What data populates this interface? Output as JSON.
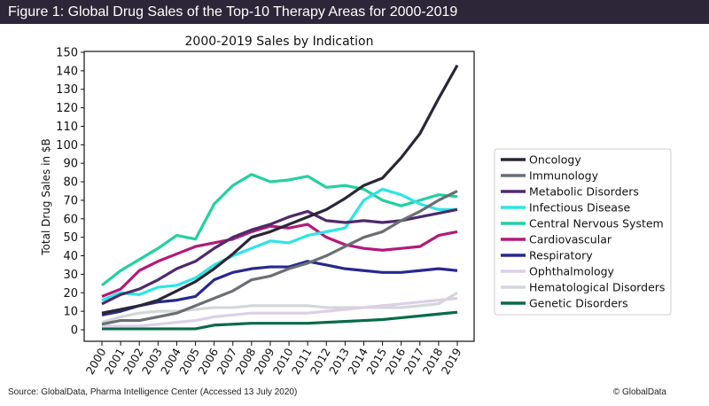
{
  "header": {
    "title": "Figure 1: Global Drug Sales of the Top-10 Therapy Areas for 2000-2019"
  },
  "footer": {
    "source": "Source: GlobalData, Pharma Intelligence Center (Accessed 13 July 2020)",
    "copyright": "© GlobalData"
  },
  "chart_data": {
    "type": "line",
    "title": "2000-2019 Sales by Indication",
    "xlabel": "",
    "ylabel": "Total Drug Sales in $B",
    "ylim": [
      0,
      150
    ],
    "yticks": [
      0,
      10,
      20,
      30,
      40,
      50,
      60,
      70,
      80,
      90,
      100,
      110,
      120,
      130,
      140,
      150
    ],
    "grid": false,
    "legend": "right",
    "x": [
      "2000",
      "2001",
      "2002",
      "2003",
      "2004",
      "2005",
      "2006",
      "2007",
      "2008",
      "2009",
      "2010",
      "2011",
      "2012",
      "2013",
      "2014",
      "2015",
      "2016",
      "2017",
      "2018",
      "2019"
    ],
    "series": [
      {
        "name": "Oncology",
        "color": "#2a2634",
        "values": [
          9,
          11,
          13,
          16,
          21,
          26,
          33,
          41,
          50,
          53,
          57,
          61,
          65,
          71,
          78,
          82,
          93,
          106,
          125,
          143
        ]
      },
      {
        "name": "Immunology",
        "color": "#6b6f73",
        "values": [
          3,
          5,
          5,
          7,
          9,
          13,
          17,
          21,
          27,
          29,
          33,
          36,
          40,
          45,
          50,
          53,
          59,
          64,
          70,
          75
        ]
      },
      {
        "name": "Metabolic Disorders",
        "color": "#4e2a6b",
        "values": [
          14,
          19,
          22,
          27,
          33,
          37,
          44,
          50,
          54,
          57,
          61,
          64,
          59,
          58,
          59,
          58,
          59,
          61,
          63,
          65
        ]
      },
      {
        "name": "Infectious Disease",
        "color": "#2ee4e6",
        "values": [
          16,
          20,
          19,
          23,
          24,
          28,
          35,
          40,
          44,
          48,
          47,
          51,
          53,
          55,
          70,
          76,
          73,
          68,
          65,
          65
        ]
      },
      {
        "name": "Central Nervous System",
        "color": "#22d19f",
        "values": [
          24,
          32,
          38,
          44,
          51,
          49,
          68,
          78,
          84,
          80,
          81,
          83,
          77,
          78,
          76,
          70,
          67,
          70,
          73,
          72
        ]
      },
      {
        "name": "Cardiovascular",
        "color": "#b3197a",
        "values": [
          18,
          22,
          32,
          37,
          41,
          45,
          47,
          49,
          53,
          56,
          55,
          57,
          50,
          46,
          44,
          43,
          44,
          45,
          51,
          53
        ]
      },
      {
        "name": "Respiratory",
        "color": "#28288f",
        "values": [
          8,
          10,
          13,
          15,
          16,
          18,
          27,
          31,
          33,
          34,
          34,
          37,
          35,
          33,
          32,
          31,
          31,
          32,
          33,
          32
        ]
      },
      {
        "name": "Ophthalmology",
        "color": "#dccfe8",
        "values": [
          2,
          2,
          2,
          3,
          4,
          5,
          7,
          8,
          9,
          9,
          9,
          9,
          10,
          11,
          12,
          13,
          14,
          15,
          16,
          17
        ]
      },
      {
        "name": "Hematological Disorders",
        "color": "#d3d7d9",
        "values": [
          4,
          7,
          9,
          10,
          10,
          11,
          12,
          12,
          13,
          13,
          13,
          13,
          12,
          12,
          12,
          12,
          12,
          13,
          14,
          20
        ]
      },
      {
        "name": "Genetic Disorders",
        "color": "#0a6a4a",
        "values": [
          0.5,
          0.5,
          0.5,
          0.5,
          0.5,
          0.5,
          2.5,
          3,
          3.5,
          3.5,
          3.5,
          3.5,
          4,
          4.5,
          5,
          5.5,
          6.5,
          7.5,
          8.5,
          9.5
        ]
      }
    ]
  }
}
